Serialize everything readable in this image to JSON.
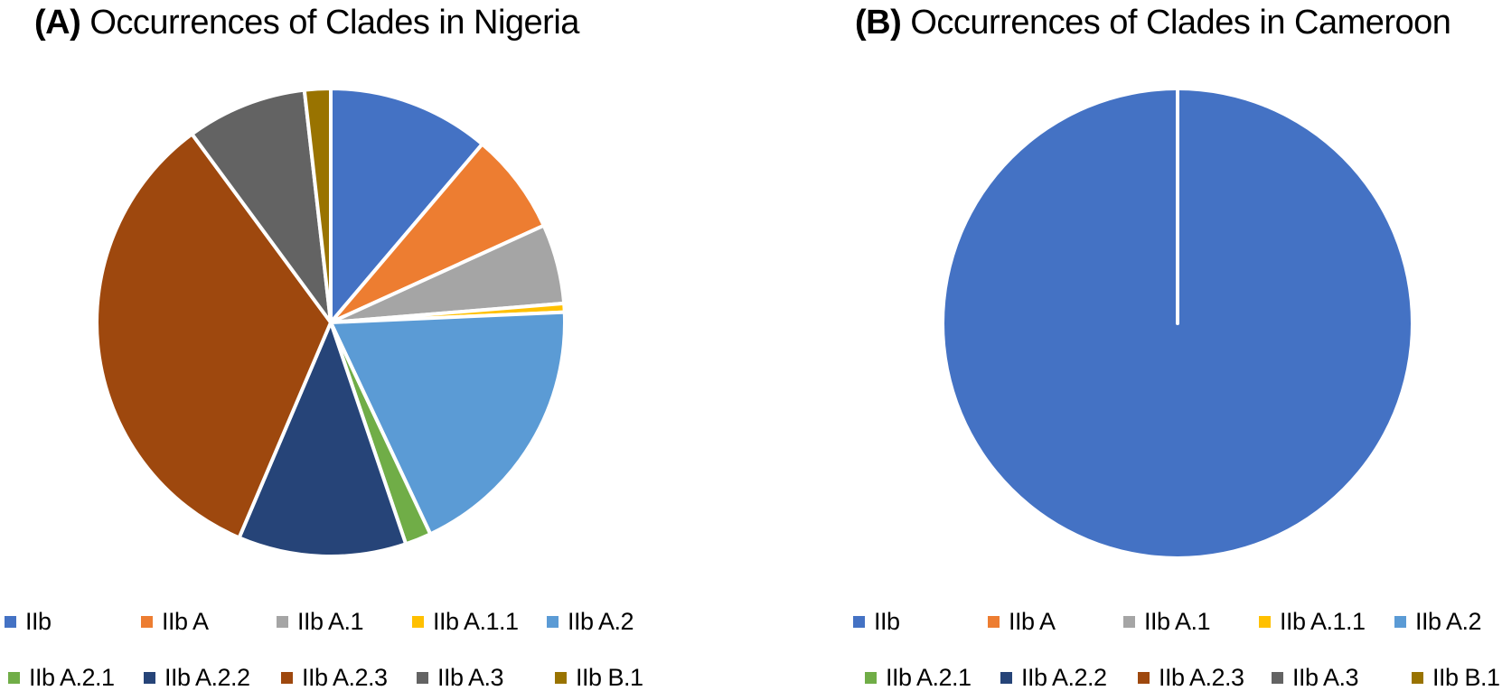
{
  "chart_data": [
    {
      "type": "pie",
      "panel": "(A)",
      "title": "Occurrences of Clades in Nigeria",
      "categories": [
        "IIb",
        "IIb A",
        "IIb A.1",
        "IIb A.1.1",
        "IIb A.2",
        "IIb A.2.1",
        "IIb A.2.2",
        "IIb A.2.3",
        "IIb A.3",
        "IIb B.1"
      ],
      "values": [
        11.2,
        7.0,
        5.5,
        0.6,
        18.7,
        1.8,
        11.6,
        33.5,
        8.3,
        1.8
      ],
      "unit": "percent (estimated from slice angles)",
      "legend_position": "bottom"
    },
    {
      "type": "pie",
      "panel": "(B)",
      "title": "Occurrences of Clades in Cameroon",
      "categories": [
        "IIb",
        "IIb A",
        "IIb A.1",
        "IIb A.1.1",
        "IIb A.2",
        "IIb A.2.1",
        "IIb A.2.2",
        "IIb A.2.3",
        "IIb A.3",
        "IIb B.1"
      ],
      "values": [
        100,
        0,
        0,
        0,
        0,
        0,
        0,
        0,
        0,
        0
      ],
      "unit": "percent",
      "legend_position": "bottom"
    }
  ],
  "colors": [
    "#4472C4",
    "#ED7D31",
    "#A5A5A5",
    "#FFC000",
    "#5B9BD5",
    "#70AD47",
    "#264478",
    "#9E480E",
    "#636363",
    "#997300"
  ],
  "panels": {
    "a": {
      "label": "(A)",
      "title": "Occurrences of Clades in Nigeria"
    },
    "b": {
      "label": "(B)",
      "title": "Occurrences of Clades in Cameroon"
    }
  },
  "legend": [
    "IIb",
    "IIb A",
    "IIb A.1",
    "IIb A.1.1",
    "IIb A.2",
    "IIb A.2.1",
    "IIb A.2.2",
    "IIb A.2.3",
    "IIb A.3",
    "IIb B.1"
  ]
}
